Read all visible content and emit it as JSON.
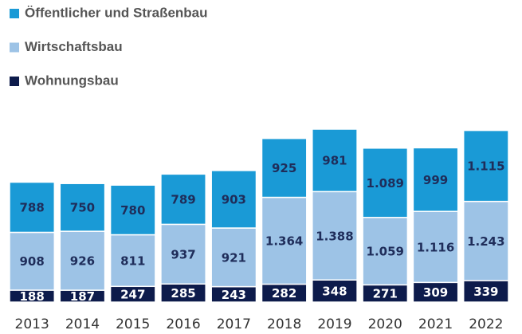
{
  "chart_data": {
    "type": "bar",
    "stacked": true,
    "categories": [
      "2013",
      "2014",
      "2015",
      "2016",
      "2017",
      "2018",
      "2019",
      "2020",
      "2021",
      "2022"
    ],
    "series": [
      {
        "name": "Öffentlicher und Straßenbau",
        "color": "#1a9ad6",
        "label_color": "#1f2d5a",
        "values": [
          788,
          750,
          780,
          789,
          903,
          925,
          981,
          1089,
          999,
          1115
        ],
        "value_labels": [
          "788",
          "750",
          "780",
          "789",
          "903",
          "925",
          "981",
          "1.089",
          "999",
          "1.115"
        ]
      },
      {
        "name": "Wirtschaftsbau",
        "color": "#9dc3e6",
        "label_color": "#1f2d5a",
        "values": [
          908,
          926,
          811,
          937,
          921,
          1364,
          1388,
          1059,
          1116,
          1243
        ],
        "value_labels": [
          "908",
          "926",
          "811",
          "937",
          "921",
          "1.364",
          "1.388",
          "1.059",
          "1.116",
          "1.243"
        ]
      },
      {
        "name": "Wohnungsbau",
        "color": "#0d1b4b",
        "label_color": "#ffffff",
        "values": [
          188,
          187,
          247,
          285,
          243,
          282,
          348,
          271,
          309,
          339
        ],
        "value_labels": [
          "188",
          "187",
          "247",
          "285",
          "243",
          "282",
          "348",
          "271",
          "309",
          "339"
        ]
      }
    ]
  }
}
